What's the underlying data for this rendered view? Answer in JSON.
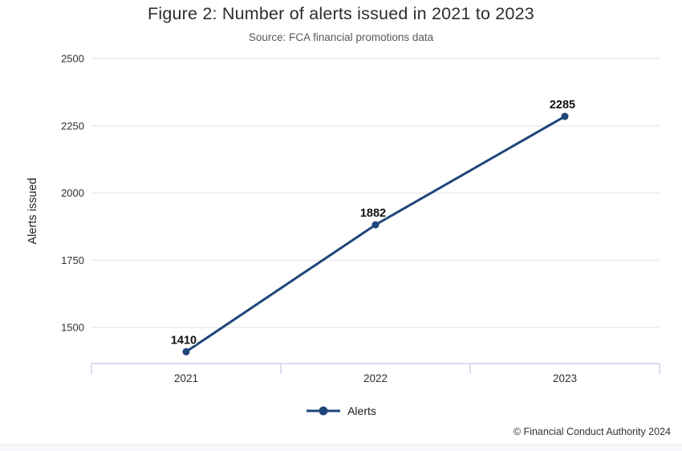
{
  "header": {
    "title": "Figure 2: Number of alerts issued in 2021 to 2023",
    "subtitle": "Source: FCA financial promotions data"
  },
  "chart_data": {
    "type": "line",
    "title": "Figure 2: Number of alerts issued in 2021 to 2023",
    "subtitle": "Source: FCA financial promotions data",
    "categories": [
      "2021",
      "2022",
      "2023"
    ],
    "series": [
      {
        "name": "Alerts",
        "values": [
          1410,
          1882,
          2285
        ]
      }
    ],
    "xlabel": "",
    "ylabel": "Alerts issued",
    "yticks": [
      1500,
      1750,
      2000,
      2250,
      2500
    ],
    "ylim": [
      1366,
      2500
    ],
    "grid": true,
    "legend_position": "bottom",
    "data_labels": true,
    "colors": {
      "line": "#1e4679",
      "marker": "#1e4679",
      "grid": "#ebebeb",
      "axis": "#d8deee",
      "tick_text": "#2f2f2f",
      "data_label_text": "#111111"
    }
  },
  "legend": {
    "label": "Alerts"
  },
  "footer": {
    "copyright": "© Financial Conduct Authority 2024"
  }
}
